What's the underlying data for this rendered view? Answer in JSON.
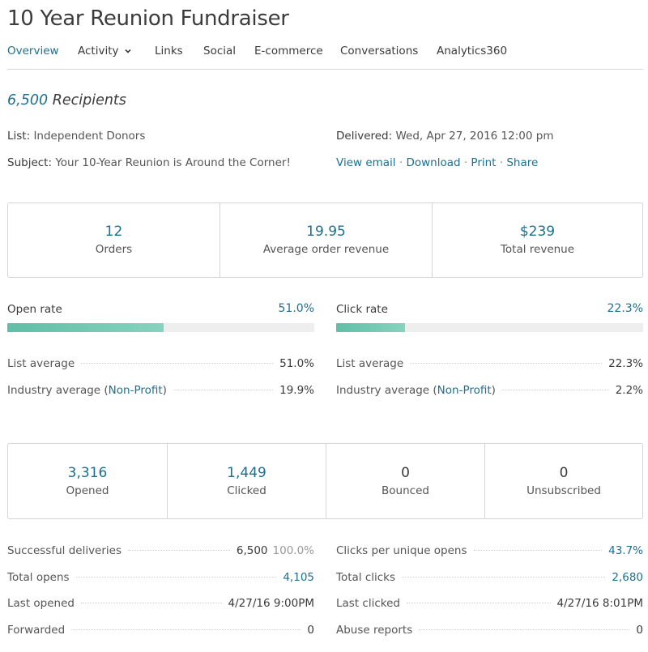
{
  "page_title": "10 Year Reunion Fundraiser",
  "tabs": [
    {
      "label": "Overview",
      "active": true
    },
    {
      "label": "Activity",
      "has_dropdown": true
    },
    {
      "label": "Links"
    },
    {
      "label": "Social"
    },
    {
      "label": "E-commerce"
    },
    {
      "label": "Conversations"
    },
    {
      "label": "Analytics360"
    }
  ],
  "recipients": {
    "count": "6,500",
    "label": "Recipients"
  },
  "meta": {
    "list_key": "List:",
    "list_value": "Independent Donors",
    "subject_key": "Subject:",
    "subject_value": "Your 10-Year Reunion is Around the Corner!",
    "delivered_key": "Delivered:",
    "delivered_value": "Wed, Apr 27, 2016 12:00 pm",
    "actions": [
      "View email",
      "Download",
      "Print",
      "Share"
    ],
    "separator": " · "
  },
  "ecommerce": [
    {
      "value": "12",
      "label": "Orders"
    },
    {
      "value": "19.95",
      "label": "Average order revenue"
    },
    {
      "value": "$239",
      "label": "Total revenue"
    }
  ],
  "open_rate": {
    "label": "Open rate",
    "value": "51.0%",
    "fill_fraction": 0.51,
    "list_avg_label": "List average",
    "list_avg_value": "51.0%",
    "industry_label_prefix": "Industry average (",
    "industry_link": "Non-Profit",
    "industry_label_suffix": ")",
    "industry_value": "19.9%"
  },
  "click_rate": {
    "label": "Click rate",
    "value": "22.3%",
    "fill_fraction": 0.223,
    "list_avg_label": "List average",
    "list_avg_value": "22.3%",
    "industry_label_prefix": "Industry average (",
    "industry_link": "Non-Profit",
    "industry_label_suffix": ")",
    "industry_value": "2.2%"
  },
  "engagement": [
    {
      "value": "3,316",
      "label": "Opened",
      "accent": true
    },
    {
      "value": "1,449",
      "label": "Clicked",
      "accent": true
    },
    {
      "value": "0",
      "label": "Bounced",
      "accent": false
    },
    {
      "value": "0",
      "label": "Unsubscribed",
      "accent": false
    }
  ],
  "stats_left": [
    {
      "label": "Successful deliveries",
      "value": "6,500",
      "extra": "100.0%"
    },
    {
      "label": "Total opens",
      "value": "4,105",
      "link": true
    },
    {
      "label": "Last opened",
      "value": "4/27/16 9:00PM"
    },
    {
      "label": "Forwarded",
      "value": "0"
    }
  ],
  "stats_right": [
    {
      "label": "Clicks per unique opens",
      "value": "43.7%",
      "link": true
    },
    {
      "label": "Total clicks",
      "value": "2,680",
      "link": true
    },
    {
      "label": "Last clicked",
      "value": "4/27/16 8:01PM"
    },
    {
      "label": "Abuse reports",
      "value": "0"
    }
  ],
  "colors": {
    "accent": "#1d6f8f",
    "bar_fill": "#6cc6ae",
    "bar_track": "#eeeeee"
  }
}
